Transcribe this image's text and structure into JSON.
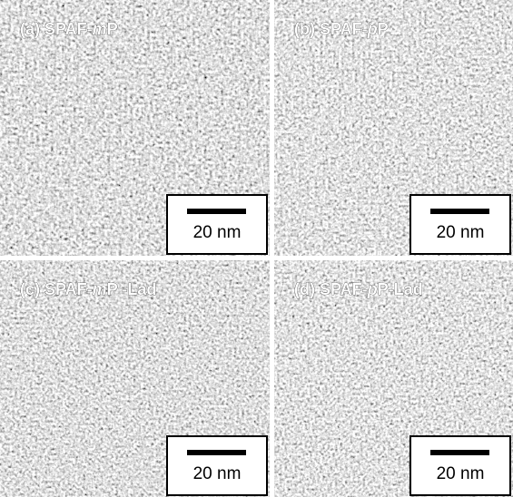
{
  "panels": [
    {
      "label": [
        {
          "text": "(a) SPAF-"
        },
        {
          "text": "m",
          "italic": true
        },
        {
          "text": "P"
        }
      ],
      "scale_bar": "20 nm"
    },
    {
      "label": [
        {
          "text": "(b) SPAF-"
        },
        {
          "text": "p",
          "italic": true
        },
        {
          "text": "P"
        }
      ],
      "scale_bar": "20 nm"
    },
    {
      "label": [
        {
          "text": "(c) SPAF-"
        },
        {
          "text": "m",
          "italic": true
        },
        {
          "text": "P -Lad"
        }
      ],
      "scale_bar": "20 nm"
    },
    {
      "label": [
        {
          "text": "(d) SPAF-"
        },
        {
          "text": "p",
          "italic": true
        },
        {
          "text": "P-Lad"
        }
      ],
      "scale_bar": "20 nm"
    }
  ]
}
